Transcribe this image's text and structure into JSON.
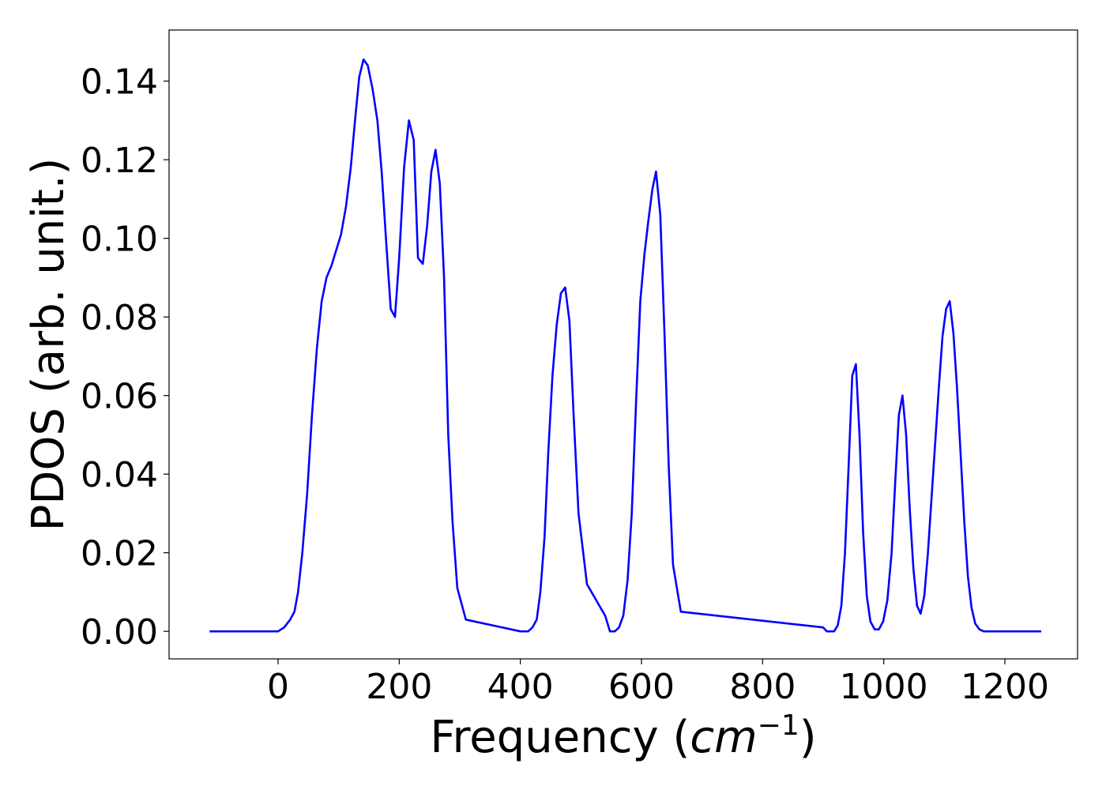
{
  "chart_data": {
    "type": "line",
    "title": "",
    "xlabel_prefix": "Frequency (",
    "xlabel_unit": "cm",
    "xlabel_sup": "−1",
    "xlabel_suffix": ")",
    "ylabel": "PDOS (arb. unit.)",
    "xlim": [
      -180,
      1320
    ],
    "ylim": [
      -0.007,
      0.153
    ],
    "xticks": [
      0,
      200,
      400,
      600,
      800,
      1000,
      1200
    ],
    "yticks": [
      0.0,
      0.02,
      0.04,
      0.06,
      0.08,
      0.1,
      0.12,
      0.14
    ],
    "xtick_labels": [
      "0",
      "200",
      "400",
      "600",
      "800",
      "1000",
      "1200"
    ],
    "ytick_labels": [
      "0.00",
      "0.02",
      "0.04",
      "0.06",
      "0.08",
      "0.10",
      "0.12",
      "0.14"
    ],
    "grid": false,
    "series": [
      {
        "color": "#0000ff",
        "x": [
          -113,
          0,
          10,
          20,
          27,
          33,
          40,
          48,
          56,
          64,
          72,
          80,
          88,
          96,
          104,
          112,
          120,
          127,
          134,
          141,
          148,
          156,
          164,
          171,
          179,
          186,
          193,
          200,
          208,
          216,
          224,
          231,
          239,
          246,
          253,
          260,
          267,
          274,
          281,
          288,
          296,
          310,
          400,
          405,
          413,
          420,
          427,
          433,
          440,
          446,
          453,
          460,
          467,
          474,
          481,
          488,
          496,
          510,
          540,
          548,
          556,
          563,
          570,
          577,
          584,
          591,
          598,
          605,
          611,
          618,
          624,
          631,
          638,
          645,
          652,
          665,
          900,
          906,
          912,
          918,
          924,
          930,
          936,
          942,
          948,
          954,
          960,
          966,
          972,
          978,
          985,
          992,
          999,
          1006,
          1013,
          1019,
          1025,
          1031,
          1037,
          1043,
          1049,
          1055,
          1061,
          1067,
          1073,
          1079,
          1085,
          1091,
          1097,
          1103,
          1109,
          1115,
          1121,
          1127,
          1133,
          1139,
          1145,
          1151,
          1158,
          1165,
          1180,
          1260
        ],
        "y": [
          0.0,
          0.0,
          0.001,
          0.003,
          0.005,
          0.01,
          0.02,
          0.035,
          0.055,
          0.072,
          0.084,
          0.09,
          0.093,
          0.097,
          0.101,
          0.108,
          0.118,
          0.13,
          0.141,
          0.1455,
          0.144,
          0.138,
          0.13,
          0.117,
          0.098,
          0.082,
          0.08,
          0.095,
          0.118,
          0.13,
          0.125,
          0.095,
          0.0935,
          0.103,
          0.117,
          0.1225,
          0.114,
          0.09,
          0.05,
          0.028,
          0.011,
          0.003,
          0.0,
          0.0,
          0.0,
          0.001,
          0.003,
          0.01,
          0.024,
          0.045,
          0.065,
          0.078,
          0.086,
          0.0875,
          0.079,
          0.055,
          0.03,
          0.012,
          0.004,
          0.0,
          0.0,
          0.001,
          0.004,
          0.013,
          0.03,
          0.058,
          0.084,
          0.096,
          0.104,
          0.1125,
          0.117,
          0.106,
          0.076,
          0.042,
          0.017,
          0.005,
          0.001,
          0.0,
          0.0,
          0.0,
          0.0015,
          0.0065,
          0.02,
          0.042,
          0.065,
          0.068,
          0.05,
          0.025,
          0.009,
          0.0025,
          0.0005,
          0.0005,
          0.0025,
          0.008,
          0.02,
          0.038,
          0.055,
          0.06,
          0.05,
          0.031,
          0.016,
          0.0065,
          0.0045,
          0.009,
          0.02,
          0.034,
          0.048,
          0.062,
          0.075,
          0.082,
          0.084,
          0.076,
          0.062,
          0.045,
          0.028,
          0.014,
          0.006,
          0.002,
          0.0005,
          0.0,
          0.0,
          0.0
        ]
      }
    ]
  }
}
